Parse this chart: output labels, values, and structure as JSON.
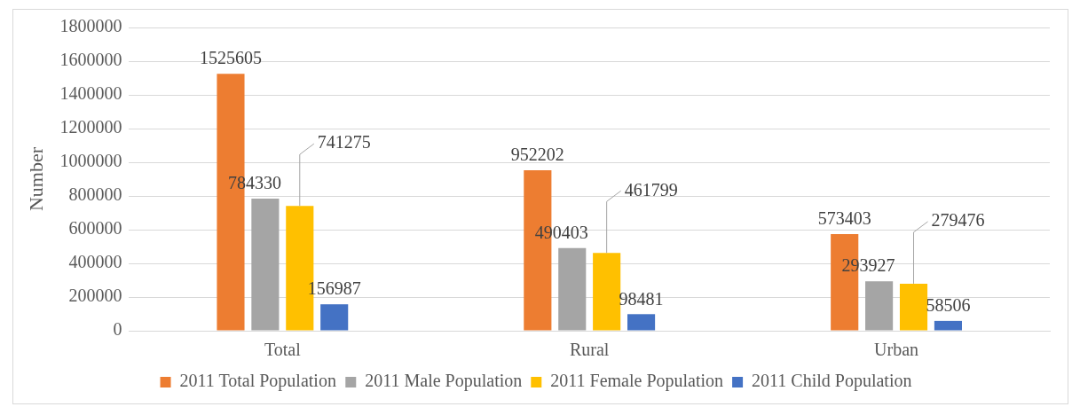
{
  "chart_data": {
    "type": "bar",
    "ylabel": "Number",
    "categories": [
      "Total",
      "Rural",
      "Urban"
    ],
    "series": [
      {
        "name": "2011 Total Population",
        "color": "#ed7d31",
        "values": [
          1525605,
          952202,
          573403
        ]
      },
      {
        "name": "2011 Male Population",
        "color": "#a5a5a5",
        "values": [
          784330,
          490403,
          293927
        ]
      },
      {
        "name": "2011 Female Population",
        "color": "#ffc000",
        "values": [
          741275,
          461799,
          279476
        ]
      },
      {
        "name": "2011 Child Population",
        "color": "#4472c4",
        "values": [
          156987,
          98481,
          58506
        ]
      }
    ],
    "ylim": [
      0,
      1800000
    ],
    "yticks": [
      0,
      200000,
      400000,
      600000,
      800000,
      1000000,
      1200000,
      1400000,
      1600000,
      1800000
    ],
    "grid": "y",
    "legend": "bottom",
    "data_labels": true
  }
}
